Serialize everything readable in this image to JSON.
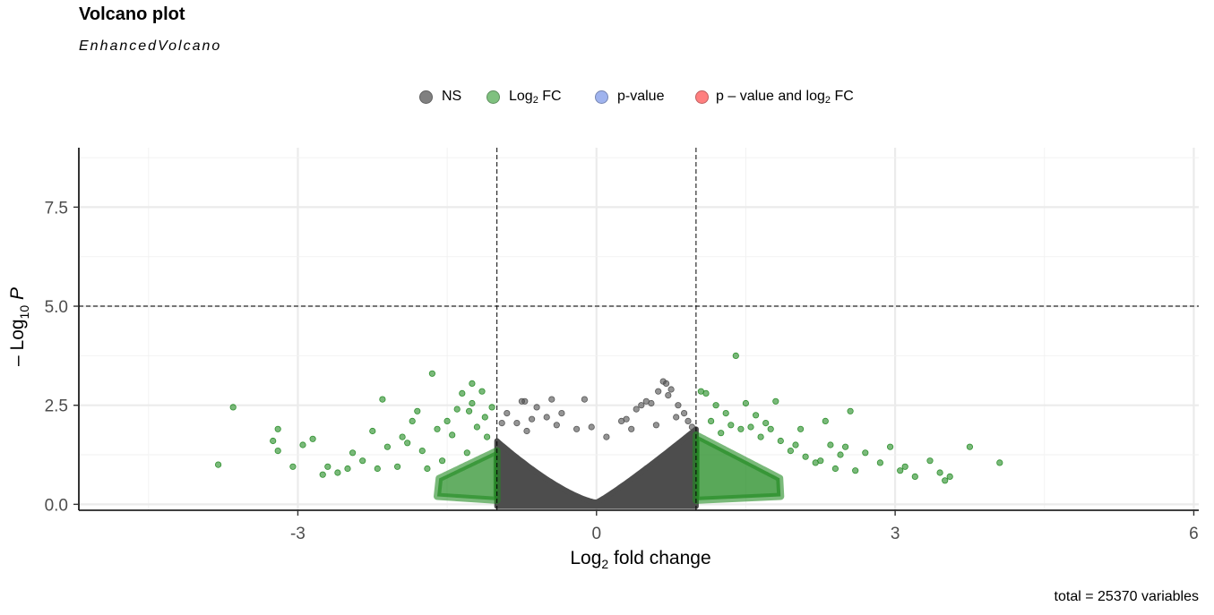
{
  "title": "Volcano plot",
  "subtitle": "EnhancedVolcano",
  "caption": "total = 25370 variables",
  "legend": [
    {
      "label_main": "NS",
      "label_sub": "",
      "label_tail": "",
      "color": "#4d4d4d"
    },
    {
      "label_main": "Log",
      "label_sub": "2",
      "label_tail": " FC",
      "color": "#228b22"
    },
    {
      "label_main": "p-value",
      "label_sub": "",
      "label_tail": "",
      "color": "#4169e1"
    },
    {
      "label_main": "p – value and log",
      "label_sub": "2",
      "label_tail": " FC",
      "color": "#ff0000"
    }
  ],
  "xlabel": {
    "main": "Log",
    "sub": "2",
    "tail": " fold change"
  },
  "ylabel": {
    "prefix": "– Log",
    "sub": "10",
    "tail": " P"
  },
  "chart_data": {
    "type": "scatter",
    "title": "Volcano plot",
    "subtitle": "EnhancedVolcano",
    "xlabel": "Log2 fold change",
    "ylabel": "-Log10 P",
    "xlim": [
      -5.2,
      6.05
    ],
    "ylim": [
      -0.15,
      9.0
    ],
    "x_ticks": [
      -3,
      0,
      3,
      6
    ],
    "x_tick_labels": [
      "-3",
      "0",
      "3",
      "6"
    ],
    "y_ticks": [
      0.0,
      2.5,
      5.0,
      7.5
    ],
    "y_tick_labels": [
      "0.0",
      "2.5",
      "5.0",
      "7.5"
    ],
    "fc_cutoff": [
      -1,
      1
    ],
    "p_cutoff_neglog10": 5.0,
    "grid": true,
    "legend_position": "top",
    "total_variables": 25370,
    "series_colors": {
      "NS": "#4d4d4d",
      "Log2 FC": "#228b22",
      "p-value": "#4169e1",
      "p-value and log2 FC": "#ff0000"
    },
    "series": [
      {
        "name": "NS",
        "points": [
          [
            -0.95,
            2.05
          ],
          [
            -0.9,
            2.3
          ],
          [
            -0.8,
            2.05
          ],
          [
            -0.75,
            2.6
          ],
          [
            -0.72,
            2.6
          ],
          [
            -0.65,
            2.15
          ],
          [
            -0.6,
            2.45
          ],
          [
            -0.5,
            2.2
          ],
          [
            -0.45,
            2.65
          ],
          [
            -0.4,
            2.0
          ],
          [
            -0.35,
            2.3
          ],
          [
            -0.2,
            1.9
          ],
          [
            -0.12,
            2.65
          ],
          [
            -0.05,
            1.95
          ],
          [
            0.1,
            1.7
          ],
          [
            0.25,
            2.1
          ],
          [
            0.3,
            2.15
          ],
          [
            0.4,
            2.4
          ],
          [
            0.45,
            2.5
          ],
          [
            0.5,
            2.6
          ],
          [
            0.55,
            2.55
          ],
          [
            0.62,
            2.85
          ],
          [
            0.67,
            3.1
          ],
          [
            0.7,
            3.05
          ],
          [
            0.72,
            2.75
          ],
          [
            0.75,
            2.9
          ],
          [
            0.82,
            2.5
          ],
          [
            0.88,
            2.3
          ],
          [
            0.92,
            2.1
          ],
          [
            0.96,
            1.95
          ],
          [
            -0.7,
            1.85
          ],
          [
            0.8,
            2.2
          ],
          [
            0.6,
            2.0
          ],
          [
            0.35,
            1.9
          ]
        ]
      },
      {
        "name": "Log2 FC",
        "points": [
          [
            -3.8,
            1.0
          ],
          [
            -3.65,
            2.45
          ],
          [
            -3.25,
            1.6
          ],
          [
            -3.2,
            1.9
          ],
          [
            -3.2,
            1.35
          ],
          [
            -3.05,
            0.95
          ],
          [
            -2.95,
            1.5
          ],
          [
            -2.85,
            1.65
          ],
          [
            -2.75,
            0.75
          ],
          [
            -2.7,
            0.95
          ],
          [
            -2.6,
            0.8
          ],
          [
            -2.5,
            0.9
          ],
          [
            -2.45,
            1.3
          ],
          [
            -2.35,
            1.1
          ],
          [
            -2.25,
            1.85
          ],
          [
            -2.2,
            0.9
          ],
          [
            -2.15,
            2.65
          ],
          [
            -2.1,
            1.45
          ],
          [
            -2.0,
            0.95
          ],
          [
            -1.95,
            1.7
          ],
          [
            -1.9,
            1.55
          ],
          [
            -1.85,
            2.1
          ],
          [
            -1.8,
            2.35
          ],
          [
            -1.75,
            1.35
          ],
          [
            -1.7,
            0.9
          ],
          [
            -1.6,
            1.9
          ],
          [
            -1.55,
            1.1
          ],
          [
            -1.5,
            2.1
          ],
          [
            -1.45,
            1.75
          ],
          [
            -1.4,
            2.4
          ],
          [
            -1.35,
            2.8
          ],
          [
            -1.3,
            1.3
          ],
          [
            -1.28,
            2.35
          ],
          [
            -1.25,
            2.55
          ],
          [
            -1.2,
            1.95
          ],
          [
            -1.15,
            2.85
          ],
          [
            -1.12,
            2.2
          ],
          [
            -1.1,
            1.7
          ],
          [
            -1.05,
            2.45
          ],
          [
            -1.65,
            3.3
          ],
          [
            -1.25,
            3.05
          ],
          [
            1.05,
            2.85
          ],
          [
            1.1,
            2.8
          ],
          [
            1.15,
            2.1
          ],
          [
            1.2,
            2.5
          ],
          [
            1.25,
            1.8
          ],
          [
            1.3,
            2.3
          ],
          [
            1.35,
            2.0
          ],
          [
            1.4,
            3.75
          ],
          [
            1.45,
            1.9
          ],
          [
            1.5,
            2.55
          ],
          [
            1.55,
            1.95
          ],
          [
            1.6,
            2.25
          ],
          [
            1.7,
            2.05
          ],
          [
            1.75,
            1.9
          ],
          [
            1.8,
            2.6
          ],
          [
            1.85,
            1.6
          ],
          [
            1.95,
            1.35
          ],
          [
            2.05,
            1.9
          ],
          [
            2.1,
            1.2
          ],
          [
            2.2,
            1.05
          ],
          [
            2.25,
            1.1
          ],
          [
            2.3,
            2.1
          ],
          [
            2.35,
            1.5
          ],
          [
            2.45,
            1.25
          ],
          [
            2.5,
            1.45
          ],
          [
            2.55,
            2.35
          ],
          [
            2.6,
            0.85
          ],
          [
            2.7,
            1.3
          ],
          [
            2.85,
            1.05
          ],
          [
            2.95,
            1.45
          ],
          [
            3.05,
            0.85
          ],
          [
            3.1,
            0.95
          ],
          [
            3.2,
            0.7
          ],
          [
            3.35,
            1.1
          ],
          [
            3.45,
            0.8
          ],
          [
            3.5,
            0.6
          ],
          [
            3.55,
            0.7
          ],
          [
            3.75,
            1.45
          ],
          [
            4.05,
            1.05
          ],
          [
            2.0,
            1.5
          ],
          [
            1.65,
            1.7
          ],
          [
            2.4,
            0.9
          ]
        ]
      },
      {
        "name": "p-value",
        "points": []
      },
      {
        "name": "p-value and log2 FC",
        "points": []
      }
    ]
  }
}
